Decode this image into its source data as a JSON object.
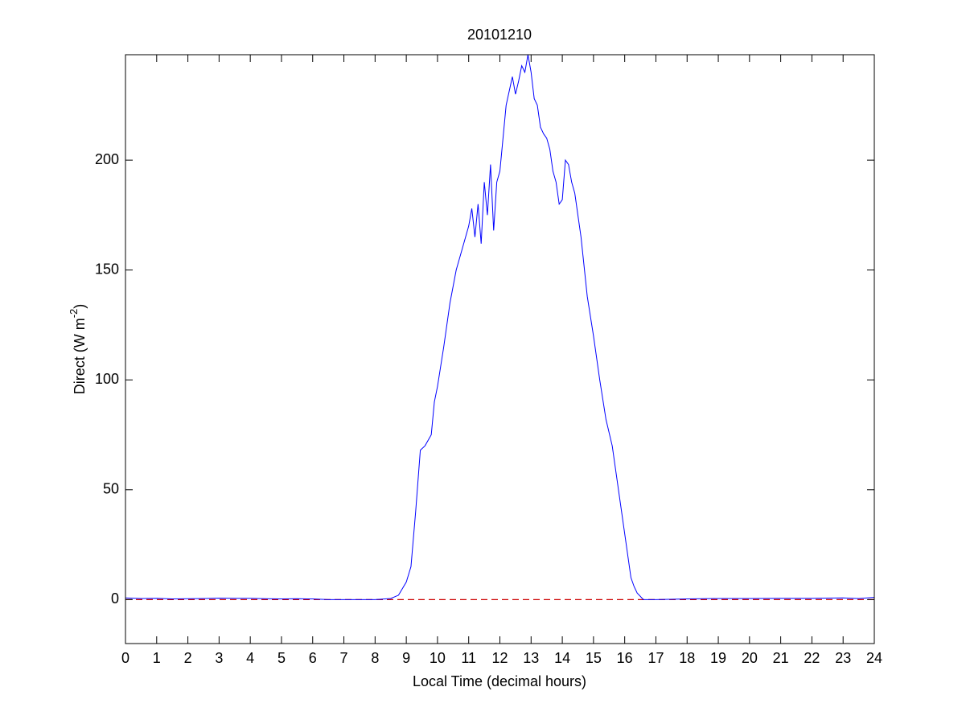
{
  "chart_data": {
    "type": "line",
    "title": "20101210",
    "x_label": "Local Time (decimal hours)",
    "y_label": {
      "text": "Direct (W m",
      "sup": "-2",
      "end": ")"
    },
    "x": [
      0,
      0.5,
      1,
      1.5,
      2,
      2.5,
      3,
      3.5,
      4,
      4.5,
      5,
      5.5,
      6,
      6.5,
      7,
      7.5,
      8,
      8.5,
      8.75,
      9,
      9.15,
      9.3,
      9.45,
      9.6,
      9.8,
      9.9,
      10,
      10.2,
      10.4,
      10.6,
      10.8,
      11,
      11.1,
      11.2,
      11.3,
      11.4,
      11.5,
      11.6,
      11.7,
      11.8,
      11.9,
      12,
      12.2,
      12.4,
      12.5,
      12.6,
      12.7,
      12.8,
      12.9,
      13,
      13.1,
      13.2,
      13.3,
      13.4,
      13.5,
      13.6,
      13.7,
      13.8,
      13.9,
      14,
      14.1,
      14.2,
      14.3,
      14.4,
      14.5,
      14.6,
      14.8,
      15,
      15.2,
      15.4,
      15.6,
      15.8,
      16,
      16.2,
      16.3,
      16.4,
      16.6,
      17,
      18,
      19,
      20,
      21,
      22,
      23,
      23.5,
      24
    ],
    "series": [
      {
        "name": "Direct",
        "color": "#0000ff",
        "values": [
          0.8,
          0.5,
          0.6,
          0.3,
          0.4,
          0.5,
          0.7,
          0.6,
          0.6,
          0.4,
          0.3,
          0.4,
          0.3,
          0,
          0,
          0,
          0,
          0.5,
          2,
          8,
          15,
          40,
          68,
          70,
          75,
          90,
          97,
          115,
          135,
          150,
          160,
          170,
          178,
          165,
          180,
          162,
          190,
          175,
          198,
          168,
          190,
          195,
          225,
          238,
          230,
          236,
          243,
          240,
          248,
          240,
          228,
          225,
          215,
          212,
          210,
          205,
          195,
          190,
          180,
          182,
          200,
          198,
          190,
          185,
          175,
          165,
          138,
          120,
          100,
          82,
          70,
          50,
          30,
          10,
          6,
          3,
          0,
          0,
          0.3,
          0.5,
          0.5,
          0.6,
          0.6,
          0.8,
          0.5,
          1
        ]
      }
    ],
    "reference_line": {
      "value": 0,
      "color": "#cc0000",
      "style": "dashed"
    },
    "xlim": [
      0,
      24
    ],
    "xticks": [
      0,
      1,
      2,
      3,
      4,
      5,
      6,
      7,
      8,
      9,
      10,
      11,
      12,
      13,
      14,
      15,
      16,
      17,
      18,
      19,
      20,
      21,
      22,
      23,
      24
    ],
    "ylim": [
      -20,
      248
    ],
    "yticks": [
      0,
      50,
      100,
      150,
      200
    ],
    "grid": false
  }
}
